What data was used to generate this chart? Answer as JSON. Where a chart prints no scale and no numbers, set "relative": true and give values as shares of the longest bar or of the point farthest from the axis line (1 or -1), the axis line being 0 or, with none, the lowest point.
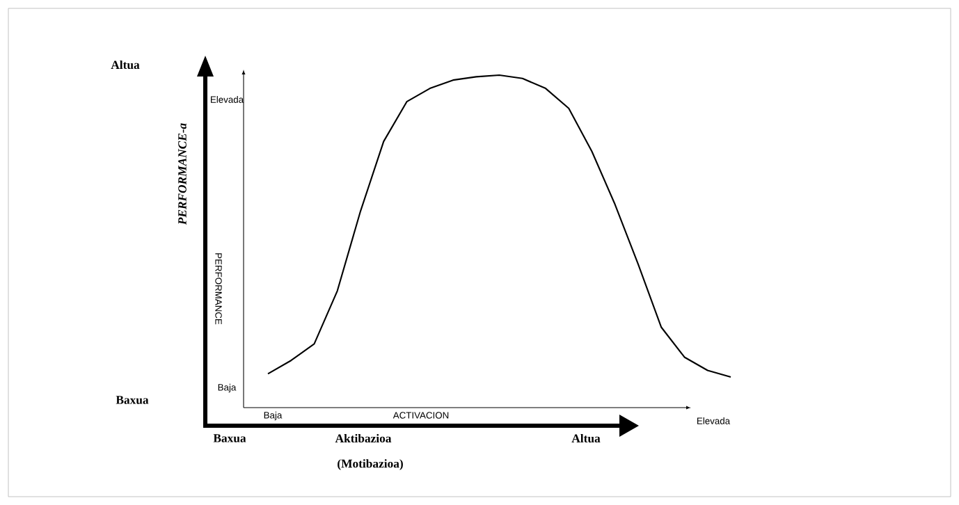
{
  "chart_data": {
    "type": "line",
    "relative": true,
    "xlabel": "ACTIVACION",
    "ylabel": "PERFORMANCE",
    "categories": [
      null,
      null,
      null,
      null,
      null,
      null,
      null,
      null,
      null,
      null,
      null,
      null,
      null,
      null,
      null,
      null,
      null,
      null,
      null,
      null,
      null
    ],
    "values": [
      0.1,
      0.14,
      0.19,
      0.35,
      0.59,
      0.8,
      0.92,
      0.96,
      0.985,
      0.995,
      1.0,
      0.99,
      0.96,
      0.9,
      0.77,
      0.61,
      0.43,
      0.24,
      0.15,
      0.11,
      0.09
    ],
    "color": "#000000",
    "annotations": [
      "Altua",
      "Baxua",
      "PERFORMANCE-a",
      "Baxua",
      "Aktibazioa",
      "Altua",
      "(Motibazioa)",
      "Elevada",
      "Baja",
      "Baja",
      "Elevada"
    ]
  }
}
